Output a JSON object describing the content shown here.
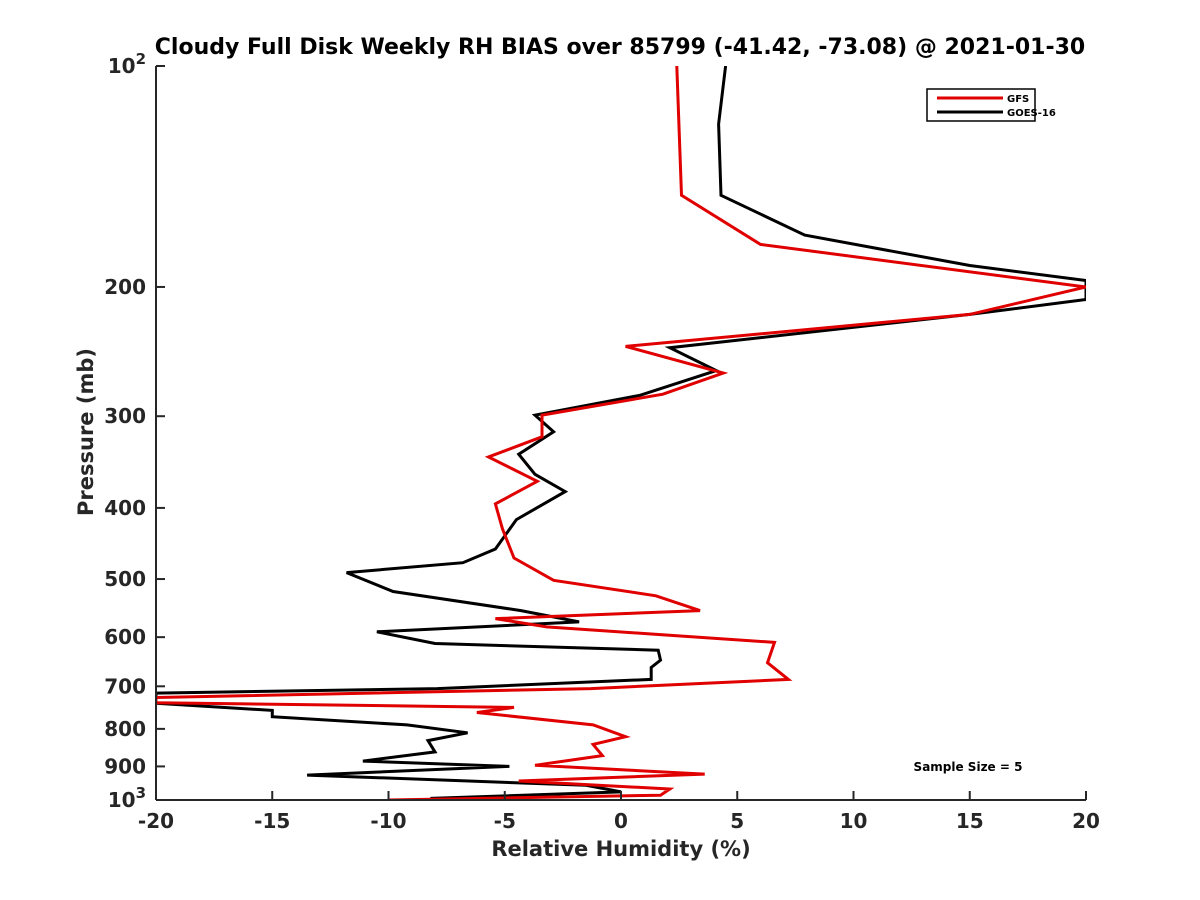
{
  "chart_data": {
    "type": "line",
    "title": "Cloudy Full Disk Weekly RH BIAS over 85799 (-41.42, -73.08) @ 2021-01-30",
    "xlabel": "Relative Humidity (%)",
    "ylabel": "Pressure (mb)",
    "xlim": [
      -20,
      20
    ],
    "ylim": [
      100,
      1000
    ],
    "y_scale": "log",
    "y_reversed": true,
    "x_ticks": [
      -20,
      -15,
      -10,
      -5,
      0,
      5,
      10,
      15,
      20
    ],
    "x_tick_labels": [
      "-20",
      "-15",
      "-10",
      "-5",
      "0",
      "5",
      "10",
      "15",
      "20"
    ],
    "y_ticks": [
      100,
      200,
      300,
      400,
      500,
      600,
      700,
      800,
      900,
      1000
    ],
    "y_tick_labels": [
      {
        "base": "10",
        "exp": "2"
      },
      {
        "base": "200",
        "exp": ""
      },
      {
        "base": "300",
        "exp": ""
      },
      {
        "base": "400",
        "exp": ""
      },
      {
        "base": "500",
        "exp": ""
      },
      {
        "base": "600",
        "exp": ""
      },
      {
        "base": "700",
        "exp": ""
      },
      {
        "base": "800",
        "exp": ""
      },
      {
        "base": "900",
        "exp": ""
      },
      {
        "base": "10",
        "exp": "3"
      }
    ],
    "grid": false,
    "legend_position": "top-right",
    "annotation": "Sample Size = 5",
    "series": [
      {
        "name": "GFS",
        "color": "#e00000",
        "points": [
          [
            2.4,
            100
          ],
          [
            2.6,
            150
          ],
          [
            6.0,
            175
          ],
          [
            20.0,
            200
          ],
          [
            15.0,
            218
          ],
          [
            0.2,
            241
          ],
          [
            4.4,
            262
          ],
          [
            1.8,
            280
          ],
          [
            -3.4,
            299
          ],
          [
            -3.4,
            320
          ],
          [
            -5.7,
            341
          ],
          [
            -3.6,
            368
          ],
          [
            -5.4,
            395
          ],
          [
            -5.1,
            427
          ],
          [
            -4.6,
            468
          ],
          [
            -2.9,
            502
          ],
          [
            1.5,
            527
          ],
          [
            3.4,
            552
          ],
          [
            -5.4,
            566
          ],
          [
            -3.2,
            581
          ],
          [
            6.6,
            610
          ],
          [
            6.3,
            650
          ],
          [
            7.2,
            685
          ],
          [
            -1.3,
            705
          ],
          [
            -20.0,
            725
          ],
          [
            -20.0,
            737
          ],
          [
            -4.6,
            748
          ],
          [
            -6.2,
            760
          ],
          [
            -1.2,
            790
          ],
          [
            0.2,
            820
          ],
          [
            -1.2,
            840
          ],
          [
            -0.8,
            870
          ],
          [
            -3.7,
            897
          ],
          [
            3.6,
            922
          ],
          [
            -4.4,
            942
          ],
          [
            2.1,
            966
          ],
          [
            1.7,
            985
          ],
          [
            -10.0,
            1000
          ]
        ]
      },
      {
        "name": "GOES-16",
        "color": "#000000",
        "points": [
          [
            4.5,
            100
          ],
          [
            4.2,
            120
          ],
          [
            4.3,
            150
          ],
          [
            7.9,
            170
          ],
          [
            15.0,
            187
          ],
          [
            20.0,
            196
          ],
          [
            20.0,
            208
          ],
          [
            15.0,
            218
          ],
          [
            2.1,
            242
          ],
          [
            4.1,
            260
          ],
          [
            0.8,
            281
          ],
          [
            -3.7,
            299
          ],
          [
            -2.9,
            315
          ],
          [
            -4.4,
            338
          ],
          [
            -3.7,
            360
          ],
          [
            -2.4,
            380
          ],
          [
            -4.5,
            415
          ],
          [
            -5.4,
            455
          ],
          [
            -6.8,
            475
          ],
          [
            -11.8,
            490
          ],
          [
            -9.8,
            520
          ],
          [
            -4.3,
            552
          ],
          [
            -1.8,
            572
          ],
          [
            -10.5,
            590
          ],
          [
            -8.0,
            612
          ],
          [
            1.6,
            625
          ],
          [
            1.7,
            645
          ],
          [
            1.3,
            660
          ],
          [
            1.3,
            685
          ],
          [
            -7.9,
            705
          ],
          [
            -20.0,
            715
          ],
          [
            -20.0,
            738
          ],
          [
            -15.0,
            755
          ],
          [
            -15.0,
            770
          ],
          [
            -9.2,
            790
          ],
          [
            -6.6,
            810
          ],
          [
            -8.3,
            830
          ],
          [
            -8.0,
            860
          ],
          [
            -11.1,
            885
          ],
          [
            -4.8,
            900
          ],
          [
            -13.5,
            925
          ],
          [
            -1.5,
            955
          ],
          [
            0.0,
            975
          ],
          [
            -8.2,
            995
          ]
        ]
      }
    ]
  }
}
